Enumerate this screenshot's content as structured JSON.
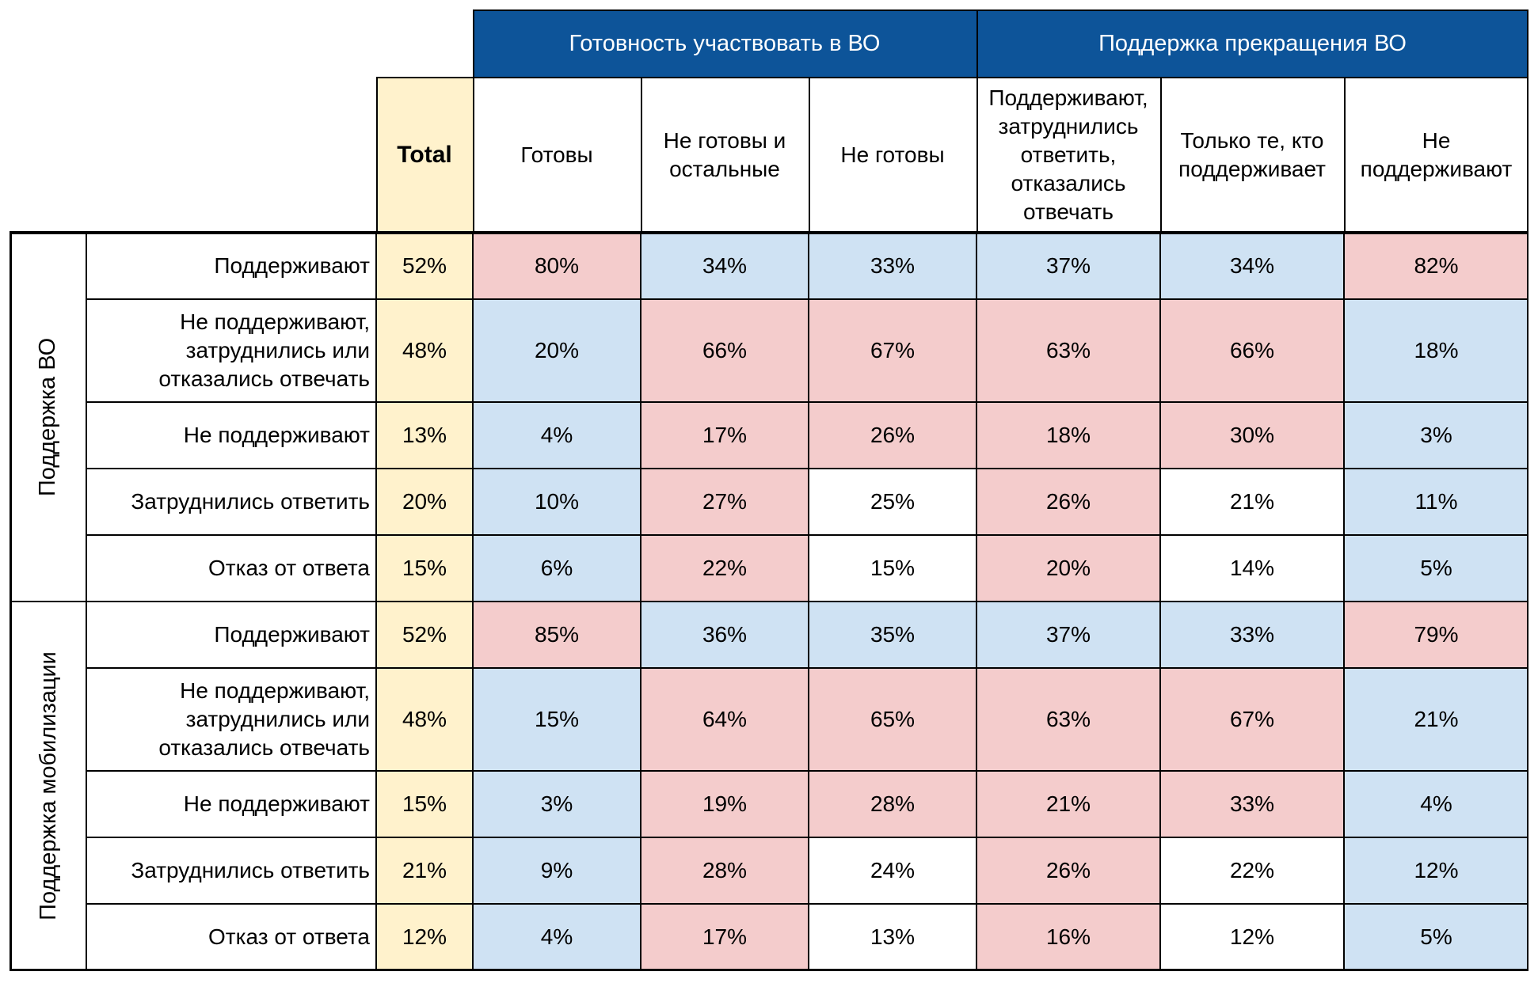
{
  "chart_data": {
    "type": "table",
    "groups": [
      {
        "label": "Готовность участвовать в ВО",
        "columns": [
          0,
          1,
          2
        ]
      },
      {
        "label": "Поддержка прекращения ВО",
        "columns": [
          3,
          4,
          5
        ]
      }
    ],
    "total_label": "Total",
    "columns": [
      [
        "Готовы"
      ],
      [
        "Не готовы и",
        "остальные"
      ],
      [
        "Не готовы"
      ],
      [
        "Поддерживают,",
        "затруднились",
        "ответить,",
        "отказались",
        "отвечать"
      ],
      [
        "Только те, кто",
        "поддерживает"
      ],
      [
        "Не",
        "поддерживают"
      ]
    ],
    "row_groups": [
      {
        "label": "Поддержка ВО",
        "rows": [
          {
            "label": [
              "Поддерживают"
            ],
            "total": "52%",
            "values": [
              "80%",
              "34%",
              "33%",
              "37%",
              "34%",
              "82%"
            ],
            "shade": [
              "hi",
              "lo",
              "lo",
              "lo",
              "lo",
              "hi"
            ]
          },
          {
            "label": [
              "Не поддерживают,",
              "затруднились или",
              "отказались отвечать"
            ],
            "total": "48%",
            "values": [
              "20%",
              "66%",
              "67%",
              "63%",
              "66%",
              "18%"
            ],
            "shade": [
              "lo",
              "hi",
              "hi",
              "hi",
              "hi",
              "lo"
            ]
          },
          {
            "label": [
              "Не поддерживают"
            ],
            "total": "13%",
            "values": [
              "4%",
              "17%",
              "26%",
              "18%",
              "30%",
              "3%"
            ],
            "shade": [
              "lo",
              "hi",
              "hi",
              "hi",
              "hi",
              "lo"
            ]
          },
          {
            "label": [
              "Затруднились ответить"
            ],
            "total": "20%",
            "values": [
              "10%",
              "27%",
              "25%",
              "26%",
              "21%",
              "11%"
            ],
            "shade": [
              "lo",
              "hi",
              "ne",
              "hi",
              "ne",
              "lo"
            ]
          },
          {
            "label": [
              "Отказ от ответа"
            ],
            "total": "15%",
            "values": [
              "6%",
              "22%",
              "15%",
              "20%",
              "14%",
              "5%"
            ],
            "shade": [
              "lo",
              "hi",
              "ne",
              "hi",
              "ne",
              "lo"
            ]
          }
        ]
      },
      {
        "label": "Поддержка мобилизации",
        "rows": [
          {
            "label": [
              "Поддерживают"
            ],
            "total": "52%",
            "values": [
              "85%",
              "36%",
              "35%",
              "37%",
              "33%",
              "79%"
            ],
            "shade": [
              "hi",
              "lo",
              "lo",
              "lo",
              "lo",
              "hi"
            ]
          },
          {
            "label": [
              "Не поддерживают,",
              "затруднились или",
              "отказались отвечать"
            ],
            "total": "48%",
            "values": [
              "15%",
              "64%",
              "65%",
              "63%",
              "67%",
              "21%"
            ],
            "shade": [
              "lo",
              "hi",
              "hi",
              "hi",
              "hi",
              "lo"
            ]
          },
          {
            "label": [
              "Не поддерживают"
            ],
            "total": "15%",
            "values": [
              "3%",
              "19%",
              "28%",
              "21%",
              "33%",
              "4%"
            ],
            "shade": [
              "lo",
              "hi",
              "hi",
              "hi",
              "hi",
              "lo"
            ]
          },
          {
            "label": [
              "Затруднились ответить"
            ],
            "total": "21%",
            "values": [
              "9%",
              "28%",
              "24%",
              "26%",
              "22%",
              "12%"
            ],
            "shade": [
              "lo",
              "hi",
              "ne",
              "hi",
              "ne",
              "lo"
            ]
          },
          {
            "label": [
              "Отказ от ответа"
            ],
            "total": "12%",
            "values": [
              "4%",
              "17%",
              "13%",
              "16%",
              "12%",
              "5%"
            ],
            "shade": [
              "lo",
              "hi",
              "ne",
              "hi",
              "ne",
              "lo"
            ]
          }
        ]
      }
    ],
    "colors": {
      "header": "#0d5499",
      "total": "#fff2cc",
      "higher": "#f4cccc",
      "lower": "#cfe2f3"
    }
  }
}
